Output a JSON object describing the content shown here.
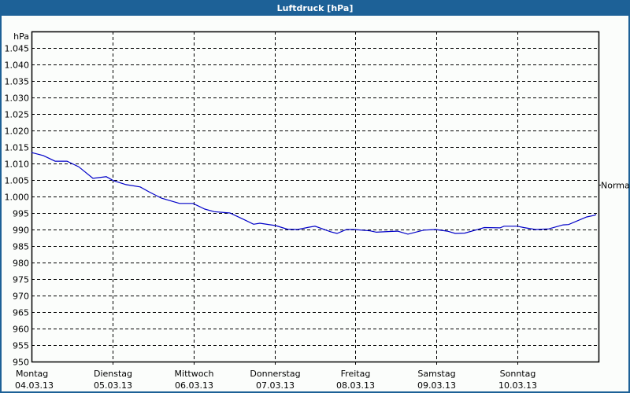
{
  "window": {
    "title": "Luftdruck [hPa]"
  },
  "colors": {
    "title_bar": "#1d6197",
    "line": "#0000c8",
    "grid": "#000000",
    "background": "#fbfdfb"
  },
  "chart_data": {
    "type": "line",
    "title": "Luftdruck [hPa]",
    "xlabel": "",
    "ylabel": "hPa",
    "ylim": [
      950,
      1050
    ],
    "y_ticks": [
      950,
      955,
      960,
      965,
      970,
      975,
      980,
      985,
      990,
      995,
      1000,
      1005,
      1010,
      1015,
      1020,
      1025,
      1030,
      1035,
      1040,
      1045
    ],
    "y_tick_labels": [
      "950",
      "955",
      "960",
      "965",
      "970",
      "975",
      "980",
      "985",
      "990",
      "995",
      "1.000",
      "1.005",
      "1.010",
      "1.015",
      "1.020",
      "1.025",
      "1.030",
      "1.035",
      "1.040",
      "1.045"
    ],
    "x_range_days": [
      0,
      7
    ],
    "x_ticks": [
      {
        "day": "Montag",
        "date": "04.03.13"
      },
      {
        "day": "Dienstag",
        "date": "05.03.13"
      },
      {
        "day": "Mittwoch",
        "date": "06.03.13"
      },
      {
        "day": "Donnerstag",
        "date": "07.03.13"
      },
      {
        "day": "Freitag",
        "date": "08.03.13"
      },
      {
        "day": "Samstag",
        "date": "09.03.13"
      },
      {
        "day": "Sonntag",
        "date": "10.03.13"
      }
    ],
    "grid": true,
    "annotations": [
      {
        "label": "Normal",
        "value": 1003.5,
        "position": "right-axis"
      }
    ],
    "series": [
      {
        "name": "Luftdruck",
        "x": [
          0.0,
          0.146,
          0.292,
          0.438,
          0.583,
          0.758,
          0.924,
          1.011,
          1.167,
          1.342,
          1.458,
          1.604,
          1.828,
          1.993,
          2.139,
          2.256,
          2.45,
          2.625,
          2.742,
          2.819,
          3.014,
          3.16,
          3.286,
          3.422,
          3.5,
          3.694,
          3.772,
          3.889,
          3.986,
          4.181,
          4.258,
          4.424,
          4.521,
          4.647,
          4.842,
          4.988,
          5.135,
          5.232,
          5.347,
          5.522,
          5.59,
          5.785,
          5.833,
          5.999,
          6.076,
          6.222,
          6.387,
          6.563,
          6.631,
          6.854,
          6.951,
          6.971
        ],
        "values": [
          1013.3,
          1012.4,
          1010.7,
          1010.7,
          1009.0,
          1005.5,
          1006.0,
          1004.8,
          1003.6,
          1002.9,
          1001.3,
          999.5,
          997.9,
          997.9,
          996.2,
          995.4,
          995.0,
          993.0,
          991.6,
          991.9,
          991.2,
          990.1,
          990.0,
          990.7,
          991.0,
          989.3,
          988.8,
          990.0,
          990.0,
          989.6,
          989.2,
          989.4,
          989.5,
          988.6,
          989.8,
          990.0,
          989.5,
          988.8,
          988.9,
          990.1,
          990.6,
          990.5,
          991.0,
          991.0,
          990.6,
          990.0,
          990.2,
          991.4,
          991.5,
          993.8,
          994.3,
          994.6
        ]
      }
    ]
  }
}
